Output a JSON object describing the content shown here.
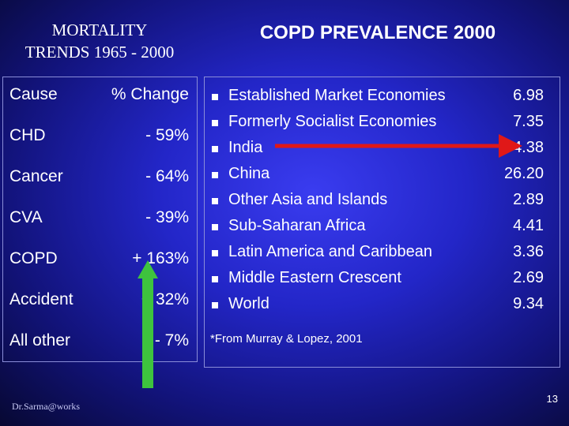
{
  "left": {
    "title_line1": "MORTALITY",
    "title_line2": "TRENDS 1965 - 2000",
    "header": {
      "cause": "Cause",
      "change": "% Change"
    },
    "rows": [
      {
        "cause": "CHD",
        "change": "- 59%"
      },
      {
        "cause": "Cancer",
        "change": "- 64%"
      },
      {
        "cause": "CVA",
        "change": "- 39%"
      },
      {
        "cause": "COPD",
        "change": "+ 163%"
      },
      {
        "cause": "Accident",
        "change": "+ 32%"
      },
      {
        "cause": "All other",
        "change": "- 7%"
      }
    ]
  },
  "right": {
    "title": "COPD PREVALENCE 2000",
    "items": [
      {
        "region": "Established Market Economies",
        "value": "6.98"
      },
      {
        "region": "Formerly Socialist Economies",
        "value": "7.35"
      },
      {
        "region": "India",
        "value": "4.38"
      },
      {
        "region": "China",
        "value": "26.20"
      },
      {
        "region": "Other Asia and Islands",
        "value": "2.89"
      },
      {
        "region": "Sub-Saharan Africa",
        "value": "4.41"
      },
      {
        "region": "Latin America and Caribbean",
        "value": "3.36"
      },
      {
        "region": "Middle Eastern Crescent",
        "value": "2.69"
      },
      {
        "region": "World",
        "value": "9.34"
      }
    ],
    "footnote": "*From Murray & Lopez, 2001"
  },
  "footer": {
    "credit": "Dr.Sarma@works",
    "page_number": "13"
  },
  "colors": {
    "background": "#2326c8",
    "green_arrow": "#3ec33e",
    "red_arrow": "#e01818"
  }
}
